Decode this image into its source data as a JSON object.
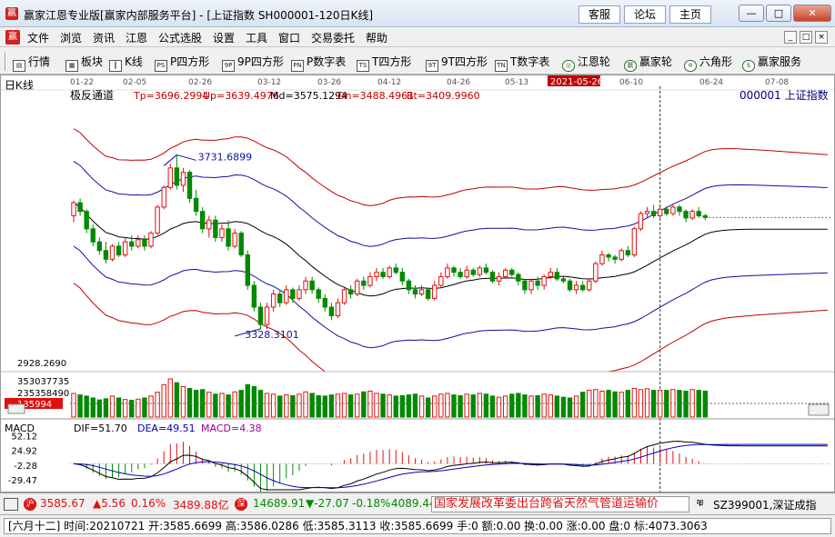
{
  "window": {
    "title": "赢家江恩专业版[赢家内部服务平台] - [上证指数  SH000001-120日K线]",
    "links": [
      "客服",
      "论坛",
      "主页"
    ],
    "controls": [
      "—",
      "□",
      "✕"
    ]
  },
  "menu": {
    "items": [
      "文件",
      "浏览",
      "资讯",
      "江恩",
      "公式选股",
      "设置",
      "工具",
      "窗口",
      "交易委托",
      "帮助"
    ],
    "mdi": [
      "_",
      "□",
      "×"
    ]
  },
  "toolbar": {
    "items": [
      {
        "icon": "quote-icon",
        "glyph": "▤",
        "label": "行情"
      },
      {
        "icon": "sector-icon",
        "glyph": "▦",
        "label": "板块"
      },
      {
        "icon": "kline-icon",
        "glyph": "┃",
        "label": "K线"
      },
      {
        "icon": "ps-icon",
        "glyph": "PS",
        "label": "P四方形"
      },
      {
        "icon": "9p-icon",
        "glyph": "9P",
        "label": "9P四方形"
      },
      {
        "icon": "pn-icon",
        "glyph": "PN",
        "label": "P数字表"
      },
      {
        "icon": "ts-icon",
        "glyph": "TS",
        "label": "T四方形"
      },
      {
        "icon": "9t-icon",
        "glyph": "9T",
        "label": "9T四方形"
      },
      {
        "icon": "tn-icon",
        "glyph": "TN",
        "label": "T数字表"
      },
      {
        "icon": "gann-wheel-icon",
        "glyph": "◎",
        "label": "江恩轮"
      },
      {
        "icon": "winner-wheel-icon",
        "glyph": "赢",
        "label": "赢家轮"
      },
      {
        "icon": "hexagon-icon",
        "glyph": "✡",
        "label": "六角形"
      },
      {
        "icon": "service-icon",
        "glyph": "$",
        "label": "赢家服务"
      }
    ]
  },
  "chart_data": {
    "type": "candlestick",
    "period_label": "日K线",
    "indicator": "极反通道",
    "params": {
      "Tp": "Tp=3696.2994",
      "Up": "Up=3639.4976",
      "Md": "Md=3575.1294",
      "Dn": "Dn=3488.4961",
      "Bt": "Bt=3409.9960"
    },
    "symbol": "000001  上证指数",
    "x_dates": [
      "01-22",
      "02-05",
      "02-26",
      "03-12",
      "03-26",
      "04-12",
      "04-26",
      "05-13",
      "2021-05-26",
      "06-10",
      "06-24",
      "07-08"
    ],
    "highlight_date": "2021-05-26",
    "price_range": [
      3240,
      3850
    ],
    "high_label": "3731.6899",
    "low_label": "3328.3101",
    "bottom_price_label": "2928.2690",
    "candles": [
      {
        "o": 3590,
        "c": 3620,
        "h": 3625,
        "l": 3575
      },
      {
        "o": 3620,
        "c": 3600,
        "h": 3630,
        "l": 3590
      },
      {
        "o": 3600,
        "c": 3560,
        "h": 3605,
        "l": 3550
      },
      {
        "o": 3560,
        "c": 3530,
        "h": 3570,
        "l": 3520
      },
      {
        "o": 3530,
        "c": 3510,
        "h": 3540,
        "l": 3500
      },
      {
        "o": 3510,
        "c": 3490,
        "h": 3530,
        "l": 3480
      },
      {
        "o": 3490,
        "c": 3520,
        "h": 3525,
        "l": 3485
      },
      {
        "o": 3520,
        "c": 3500,
        "h": 3530,
        "l": 3495
      },
      {
        "o": 3500,
        "c": 3530,
        "h": 3540,
        "l": 3495
      },
      {
        "o": 3530,
        "c": 3520,
        "h": 3545,
        "l": 3510
      },
      {
        "o": 3520,
        "c": 3535,
        "h": 3545,
        "l": 3515
      },
      {
        "o": 3535,
        "c": 3520,
        "h": 3545,
        "l": 3510
      },
      {
        "o": 3520,
        "c": 3550,
        "h": 3555,
        "l": 3515
      },
      {
        "o": 3550,
        "c": 3610,
        "h": 3615,
        "l": 3545
      },
      {
        "o": 3610,
        "c": 3655,
        "h": 3660,
        "l": 3605
      },
      {
        "o": 3655,
        "c": 3700,
        "h": 3710,
        "l": 3650
      },
      {
        "o": 3700,
        "c": 3660,
        "h": 3730,
        "l": 3650
      },
      {
        "o": 3660,
        "c": 3690,
        "h": 3700,
        "l": 3645
      },
      {
        "o": 3690,
        "c": 3630,
        "h": 3695,
        "l": 3620
      },
      {
        "o": 3630,
        "c": 3600,
        "h": 3650,
        "l": 3590
      },
      {
        "o": 3600,
        "c": 3560,
        "h": 3610,
        "l": 3550
      },
      {
        "o": 3560,
        "c": 3580,
        "h": 3590,
        "l": 3540
      },
      {
        "o": 3580,
        "c": 3540,
        "h": 3590,
        "l": 3530
      },
      {
        "o": 3540,
        "c": 3560,
        "h": 3570,
        "l": 3530
      },
      {
        "o": 3560,
        "c": 3520,
        "h": 3580,
        "l": 3510
      },
      {
        "o": 3520,
        "c": 3550,
        "h": 3560,
        "l": 3515
      },
      {
        "o": 3550,
        "c": 3500,
        "h": 3555,
        "l": 3495
      },
      {
        "o": 3500,
        "c": 3430,
        "h": 3510,
        "l": 3420
      },
      {
        "o": 3430,
        "c": 3380,
        "h": 3440,
        "l": 3370
      },
      {
        "o": 3380,
        "c": 3340,
        "h": 3390,
        "l": 3330
      },
      {
        "o": 3340,
        "c": 3380,
        "h": 3390,
        "l": 3330
      },
      {
        "o": 3380,
        "c": 3410,
        "h": 3420,
        "l": 3370
      },
      {
        "o": 3410,
        "c": 3390,
        "h": 3420,
        "l": 3380
      },
      {
        "o": 3390,
        "c": 3420,
        "h": 3430,
        "l": 3385
      },
      {
        "o": 3420,
        "c": 3400,
        "h": 3425,
        "l": 3390
      },
      {
        "o": 3400,
        "c": 3420,
        "h": 3430,
        "l": 3395
      },
      {
        "o": 3420,
        "c": 3440,
        "h": 3450,
        "l": 3410
      },
      {
        "o": 3440,
        "c": 3420,
        "h": 3450,
        "l": 3410
      },
      {
        "o": 3420,
        "c": 3400,
        "h": 3425,
        "l": 3390
      },
      {
        "o": 3400,
        "c": 3380,
        "h": 3410,
        "l": 3370
      },
      {
        "o": 3380,
        "c": 3360,
        "h": 3390,
        "l": 3350
      },
      {
        "o": 3360,
        "c": 3390,
        "h": 3400,
        "l": 3355
      },
      {
        "o": 3390,
        "c": 3420,
        "h": 3425,
        "l": 3385
      },
      {
        "o": 3420,
        "c": 3410,
        "h": 3430,
        "l": 3400
      },
      {
        "o": 3410,
        "c": 3440,
        "h": 3445,
        "l": 3405
      },
      {
        "o": 3440,
        "c": 3430,
        "h": 3450,
        "l": 3420
      },
      {
        "o": 3430,
        "c": 3450,
        "h": 3460,
        "l": 3425
      },
      {
        "o": 3450,
        "c": 3460,
        "h": 3470,
        "l": 3440
      },
      {
        "o": 3460,
        "c": 3450,
        "h": 3470,
        "l": 3445
      },
      {
        "o": 3450,
        "c": 3470,
        "h": 3475,
        "l": 3445
      },
      {
        "o": 3470,
        "c": 3460,
        "h": 3480,
        "l": 3455
      },
      {
        "o": 3460,
        "c": 3440,
        "h": 3470,
        "l": 3430
      },
      {
        "o": 3440,
        "c": 3420,
        "h": 3445,
        "l": 3410
      },
      {
        "o": 3420,
        "c": 3410,
        "h": 3430,
        "l": 3400
      },
      {
        "o": 3410,
        "c": 3420,
        "h": 3430,
        "l": 3405
      },
      {
        "o": 3420,
        "c": 3400,
        "h": 3425,
        "l": 3395
      },
      {
        "o": 3400,
        "c": 3430,
        "h": 3440,
        "l": 3395
      },
      {
        "o": 3430,
        "c": 3450,
        "h": 3460,
        "l": 3425
      },
      {
        "o": 3450,
        "c": 3470,
        "h": 3480,
        "l": 3445
      },
      {
        "o": 3470,
        "c": 3460,
        "h": 3475,
        "l": 3450
      },
      {
        "o": 3460,
        "c": 3450,
        "h": 3470,
        "l": 3445
      },
      {
        "o": 3450,
        "c": 3465,
        "h": 3475,
        "l": 3445
      },
      {
        "o": 3465,
        "c": 3455,
        "h": 3470,
        "l": 3450
      },
      {
        "o": 3455,
        "c": 3470,
        "h": 3475,
        "l": 3450
      },
      {
        "o": 3470,
        "c": 3460,
        "h": 3480,
        "l": 3455
      },
      {
        "o": 3460,
        "c": 3440,
        "h": 3465,
        "l": 3435
      },
      {
        "o": 3440,
        "c": 3450,
        "h": 3460,
        "l": 3430
      },
      {
        "o": 3450,
        "c": 3465,
        "h": 3470,
        "l": 3445
      },
      {
        "o": 3465,
        "c": 3455,
        "h": 3470,
        "l": 3450
      },
      {
        "o": 3455,
        "c": 3440,
        "h": 3460,
        "l": 3430
      },
      {
        "o": 3440,
        "c": 3420,
        "h": 3445,
        "l": 3410
      },
      {
        "o": 3420,
        "c": 3440,
        "h": 3445,
        "l": 3410
      },
      {
        "o": 3440,
        "c": 3430,
        "h": 3450,
        "l": 3420
      },
      {
        "o": 3430,
        "c": 3450,
        "h": 3455,
        "l": 3420
      },
      {
        "o": 3450,
        "c": 3460,
        "h": 3470,
        "l": 3445
      },
      {
        "o": 3460,
        "c": 3445,
        "h": 3470,
        "l": 3440
      },
      {
        "o": 3445,
        "c": 3440,
        "h": 3450,
        "l": 3435
      },
      {
        "o": 3440,
        "c": 3420,
        "h": 3445,
        "l": 3415
      },
      {
        "o": 3420,
        "c": 3430,
        "h": 3440,
        "l": 3410
      },
      {
        "o": 3430,
        "c": 3420,
        "h": 3440,
        "l": 3415
      },
      {
        "o": 3420,
        "c": 3440,
        "h": 3445,
        "l": 3415
      },
      {
        "o": 3440,
        "c": 3480,
        "h": 3485,
        "l": 3435
      },
      {
        "o": 3480,
        "c": 3500,
        "h": 3510,
        "l": 3475
      },
      {
        "o": 3500,
        "c": 3495,
        "h": 3505,
        "l": 3485
      },
      {
        "o": 3495,
        "c": 3490,
        "h": 3500,
        "l": 3480
      },
      {
        "o": 3490,
        "c": 3510,
        "h": 3515,
        "l": 3485
      },
      {
        "o": 3510,
        "c": 3500,
        "h": 3520,
        "l": 3495
      },
      {
        "o": 3500,
        "c": 3560,
        "h": 3565,
        "l": 3495
      },
      {
        "o": 3560,
        "c": 3595,
        "h": 3600,
        "l": 3555
      },
      {
        "o": 3595,
        "c": 3600,
        "h": 3610,
        "l": 3585
      },
      {
        "o": 3600,
        "c": 3590,
        "h": 3615,
        "l": 3585
      },
      {
        "o": 3590,
        "c": 3605,
        "h": 3612,
        "l": 3585
      },
      {
        "o": 3605,
        "c": 3595,
        "h": 3612,
        "l": 3590
      },
      {
        "o": 3595,
        "c": 3610,
        "h": 3615,
        "l": 3590
      },
      {
        "o": 3610,
        "c": 3600,
        "h": 3615,
        "l": 3590
      },
      {
        "o": 3600,
        "c": 3585,
        "h": 3605,
        "l": 3575
      },
      {
        "o": 3585,
        "c": 3600,
        "h": 3605,
        "l": 3580
      },
      {
        "o": 3600,
        "c": 3590,
        "h": 3610,
        "l": 3585
      },
      {
        "o": 3590,
        "c": 3586,
        "h": 3595,
        "l": 3580
      }
    ],
    "volume": {
      "labels": [
        "353037735",
        "235358490",
        "135994"
      ],
      "values": [
        0.62,
        0.58,
        0.55,
        0.5,
        0.45,
        0.48,
        0.55,
        0.5,
        0.46,
        0.44,
        0.47,
        0.5,
        0.55,
        0.65,
        0.85,
        1.0,
        0.9,
        0.8,
        0.75,
        0.7,
        0.72,
        0.65,
        0.6,
        0.62,
        0.58,
        0.66,
        0.7,
        0.85,
        0.8,
        0.7,
        0.62,
        0.6,
        0.55,
        0.58,
        0.56,
        0.6,
        0.66,
        0.62,
        0.56,
        0.55,
        0.58,
        0.6,
        0.62,
        0.58,
        0.6,
        0.66,
        0.68,
        0.62,
        0.6,
        0.58,
        0.55,
        0.56,
        0.58,
        0.6,
        0.55,
        0.5,
        0.55,
        0.6,
        0.62,
        0.58,
        0.56,
        0.6,
        0.58,
        0.62,
        0.6,
        0.55,
        0.52,
        0.55,
        0.6,
        0.62,
        0.58,
        0.55,
        0.56,
        0.6,
        0.58,
        0.55,
        0.52,
        0.5,
        0.55,
        0.65,
        0.7,
        0.72,
        0.68,
        0.7,
        0.66,
        0.65,
        0.7,
        0.75,
        0.72,
        0.74,
        0.7,
        0.7,
        0.7,
        0.72,
        0.7,
        0.68,
        0.72,
        0.7,
        0.68
      ]
    },
    "macd": {
      "title": "MACD",
      "dif_label": "DIF=51.70",
      "dea_label": "DEA=49.51",
      "macd_label": "MACD=4.38",
      "y_ticks": [
        "52.12",
        "24.92",
        "-2.28",
        "-29.47"
      ],
      "range": [
        -45,
        60
      ]
    }
  },
  "status": {
    "sh_name": "沪",
    "sh_price": "3585.67",
    "sh_change": "▲5.56",
    "sh_pct": "0.16%",
    "sh_amount": "3489.88亿",
    "sz_name": "深",
    "sz_price": "14689.91",
    "sz_change": "▼-27.07",
    "sz_pct": "-0.18%",
    "sz_amount": "4089.44",
    "news": "国家发展改革委出台跨省天然气管道运输价",
    "sz_code": "SZ399001,深证成指"
  },
  "info": {
    "text": "[六月十二] 时间:20210721 开:3585.6699 高:3586.0286 低:3585.3113 收:3585.6699 手:0 额:0.00 换:0.00 涨:0.00 盘:0 标:4073.3063"
  },
  "colors": {
    "up": "#e01010",
    "down": "#008a00",
    "band_outer": "#c00000",
    "band_inner": "#1010a0",
    "mid": "#000000",
    "dif": "#000000",
    "dea": "#0000c0",
    "macd_label": "#a000a0"
  }
}
